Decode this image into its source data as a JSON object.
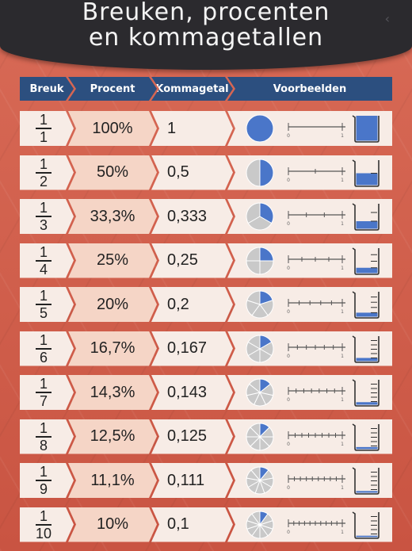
{
  "title": {
    "line1": "Breuken, procenten",
    "line2": "en kommagetallen"
  },
  "columns": {
    "breuk": "Breuk",
    "procent": "Procent",
    "kommagetal": "Kommagetal",
    "voorbeelden": "Voorbeelden"
  },
  "colors": {
    "header_bg": "#2b2a2e",
    "column_header_bg": "#2c4f7f",
    "fill_blue": "#4a76c9",
    "empty_gray": "#c9c9c9",
    "background": "#d2624f"
  },
  "number_line": {
    "start_label": "0",
    "end_label": "1"
  },
  "rows": [
    {
      "num": "1",
      "den": "1",
      "fraction_value": 1,
      "percent": "100%",
      "decimal": "1"
    },
    {
      "num": "1",
      "den": "2",
      "fraction_value": 0.5,
      "percent": "50%",
      "decimal": "0,5"
    },
    {
      "num": "1",
      "den": "3",
      "fraction_value": 0.333,
      "percent": "33,3%",
      "decimal": "0,333"
    },
    {
      "num": "1",
      "den": "4",
      "fraction_value": 0.25,
      "percent": "25%",
      "decimal": "0,25"
    },
    {
      "num": "1",
      "den": "5",
      "fraction_value": 0.2,
      "percent": "20%",
      "decimal": "0,2"
    },
    {
      "num": "1",
      "den": "6",
      "fraction_value": 0.167,
      "percent": "16,7%",
      "decimal": "0,167"
    },
    {
      "num": "1",
      "den": "7",
      "fraction_value": 0.143,
      "percent": "14,3%",
      "decimal": "0,143"
    },
    {
      "num": "1",
      "den": "8",
      "fraction_value": 0.125,
      "percent": "12,5%",
      "decimal": "0,125"
    },
    {
      "num": "1",
      "den": "9",
      "fraction_value": 0.111,
      "percent": "11,1%",
      "decimal": "0,111"
    },
    {
      "num": "1",
      "den": "10",
      "fraction_value": 0.1,
      "percent": "10%",
      "decimal": "0,1"
    }
  ]
}
